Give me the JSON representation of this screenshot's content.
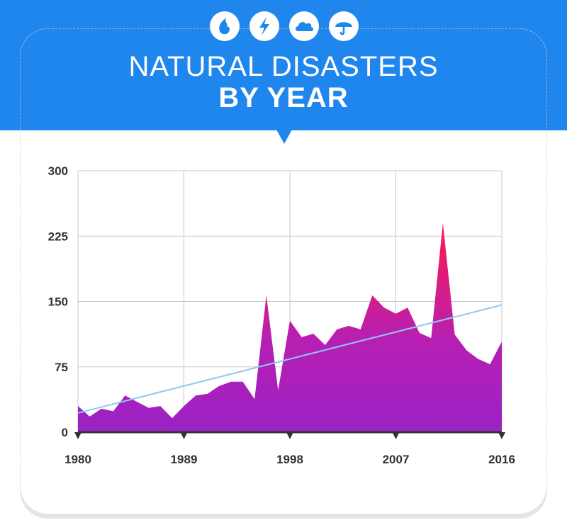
{
  "header": {
    "title_line1": "NATURAL DISASTERS",
    "title_line2": "BY YEAR",
    "icons": [
      "drop-icon",
      "lightning-icon",
      "cloud-icon",
      "umbrella-icon"
    ]
  },
  "colors": {
    "header_blue": "#1f86ee",
    "area_bottom": "#9a22c4",
    "area_top": "#ff1a4a",
    "trend_line": "#8ec8f4",
    "grid": "#c8c8c8"
  },
  "chart_data": {
    "type": "area",
    "x": [
      1980,
      1981,
      1982,
      1983,
      1984,
      1985,
      1986,
      1987,
      1988,
      1989,
      1990,
      1991,
      1992,
      1993,
      1994,
      1995,
      1996,
      1997,
      1998,
      1999,
      2000,
      2001,
      2002,
      2003,
      2004,
      2005,
      2006,
      2007,
      2008,
      2009,
      2010,
      2011,
      2012,
      2013,
      2014,
      2015,
      2016
    ],
    "series": [
      {
        "values": [
          30,
          18,
          27,
          24,
          42,
          35,
          28,
          30,
          16,
          30,
          42,
          44,
          53,
          58,
          58,
          38,
          157,
          48,
          128,
          109,
          113,
          100,
          118,
          122,
          118,
          157,
          143,
          136,
          143,
          114,
          108,
          240,
          112,
          94,
          84,
          78,
          104
        ]
      }
    ],
    "trend": {
      "start": [
        1980,
        22
      ],
      "end": [
        2016,
        146
      ]
    },
    "x_ticks": [
      "1980",
      "1989",
      "1998",
      "2007",
      "2016"
    ],
    "y_ticks": [
      "0",
      "75",
      "150",
      "225",
      "300"
    ],
    "xlim": [
      1980,
      2016
    ],
    "ylim": [
      0,
      300
    ],
    "grid": true
  }
}
